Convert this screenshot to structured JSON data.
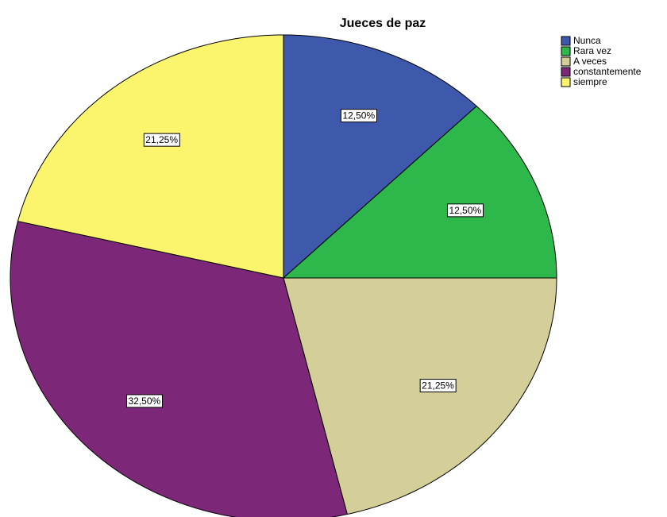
{
  "chart_data": {
    "type": "pie",
    "title": "Jueces de paz",
    "categories": [
      "Nunca",
      "Rara vez",
      "A veces",
      "constantemente",
      "siempre"
    ],
    "values": [
      12.5,
      12.5,
      21.25,
      32.5,
      21.25
    ],
    "value_labels": [
      "12,50%",
      "12,50%",
      "21,25%",
      "32,50%",
      "21,25%"
    ],
    "colors": [
      "#3e58ac",
      "#2eb84b",
      "#d4cf98",
      "#7d2778",
      "#fbf46d"
    ],
    "legend": "top-right"
  }
}
